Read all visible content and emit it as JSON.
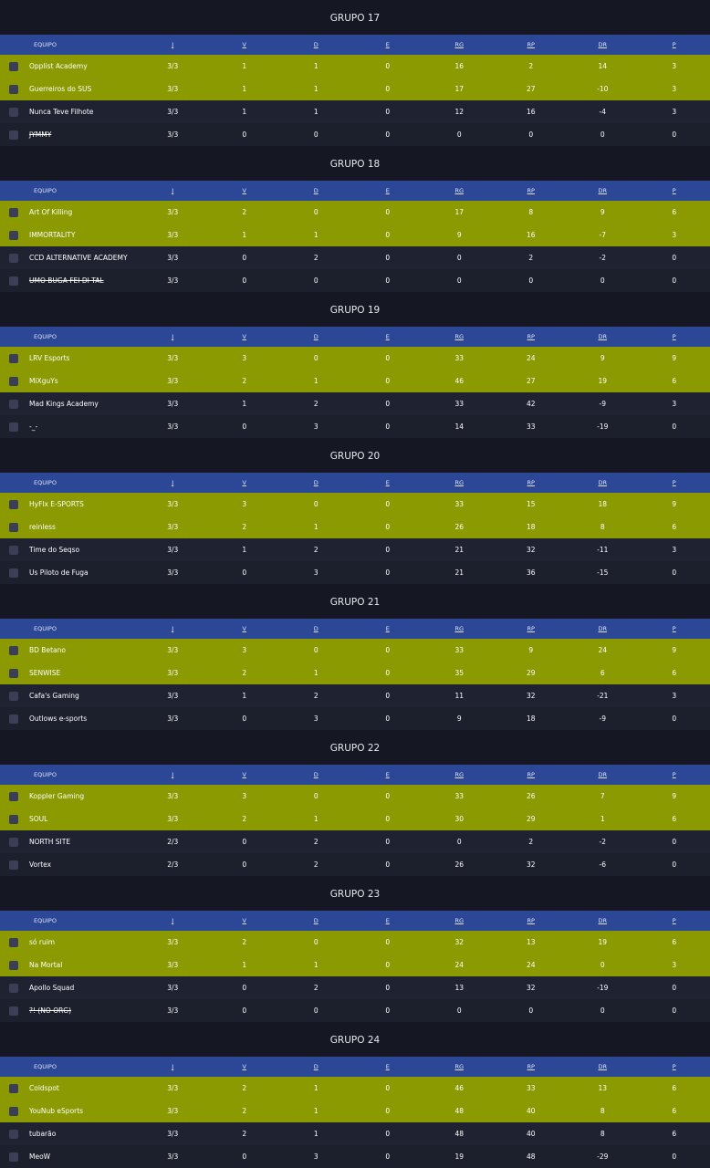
{
  "header": {
    "team": "EQUIPO",
    "cols": [
      "J",
      "V",
      "D",
      "E",
      "RG",
      "RP",
      "DR",
      "P"
    ]
  },
  "groups": [
    {
      "title": "GRUPO 17",
      "rows": [
        {
          "team": "Opplist Academy",
          "stats": [
            "3/3",
            1,
            1,
            0,
            16,
            2,
            14,
            3
          ]
        },
        {
          "team": "Guerreiros do SUS",
          "stats": [
            "3/3",
            1,
            1,
            0,
            17,
            27,
            -10,
            3
          ]
        },
        {
          "team": "Nunca Teve Filhote",
          "stats": [
            "3/3",
            1,
            1,
            0,
            12,
            16,
            -4,
            3
          ]
        },
        {
          "team": "JYMMY",
          "struck": true,
          "stats": [
            "3/3",
            0,
            0,
            0,
            0,
            0,
            0,
            0
          ]
        }
      ]
    },
    {
      "title": "GRUPO 18",
      "rows": [
        {
          "team": "Art Of Killing",
          "stats": [
            "3/3",
            2,
            0,
            0,
            17,
            8,
            9,
            6
          ]
        },
        {
          "team": "IMMORTALITY",
          "stats": [
            "3/3",
            1,
            1,
            0,
            9,
            16,
            -7,
            3
          ]
        },
        {
          "team": "CCD ALTERNATIVE ACADEMY",
          "stats": [
            "3/3",
            0,
            2,
            0,
            0,
            2,
            -2,
            0
          ]
        },
        {
          "team": "UMO BUGA FEI DI TAL",
          "struck": true,
          "stats": [
            "3/3",
            0,
            0,
            0,
            0,
            0,
            0,
            0
          ]
        }
      ]
    },
    {
      "title": "GRUPO 19",
      "rows": [
        {
          "team": "LRV Esports",
          "stats": [
            "3/3",
            3,
            0,
            0,
            33,
            24,
            9,
            9
          ]
        },
        {
          "team": "MiXguYs",
          "stats": [
            "3/3",
            2,
            1,
            0,
            46,
            27,
            19,
            6
          ]
        },
        {
          "team": "Mad Kings Academy",
          "stats": [
            "3/3",
            1,
            2,
            0,
            33,
            42,
            -9,
            3
          ]
        },
        {
          "team": "-_-",
          "stats": [
            "3/3",
            0,
            3,
            0,
            14,
            33,
            -19,
            0
          ]
        }
      ]
    },
    {
      "title": "GRUPO 20",
      "rows": [
        {
          "team": "HyFlx E-SPORTS",
          "stats": [
            "3/3",
            3,
            0,
            0,
            33,
            15,
            18,
            9
          ]
        },
        {
          "team": "reinless",
          "stats": [
            "3/3",
            2,
            1,
            0,
            26,
            18,
            8,
            6
          ]
        },
        {
          "team": "Time do Seqso",
          "stats": [
            "3/3",
            1,
            2,
            0,
            21,
            32,
            -11,
            3
          ]
        },
        {
          "team": "Us Piloto de Fuga",
          "stats": [
            "3/3",
            0,
            3,
            0,
            21,
            36,
            -15,
            0
          ]
        }
      ]
    },
    {
      "title": "GRUPO 21",
      "rows": [
        {
          "team": "BD Betano",
          "stats": [
            "3/3",
            3,
            0,
            0,
            33,
            9,
            24,
            9
          ]
        },
        {
          "team": "SENWISE",
          "stats": [
            "3/3",
            2,
            1,
            0,
            35,
            29,
            6,
            6
          ]
        },
        {
          "team": "Cafa's Gaming",
          "stats": [
            "3/3",
            1,
            2,
            0,
            11,
            32,
            -21,
            3
          ]
        },
        {
          "team": "Outlows e-sports",
          "stats": [
            "3/3",
            0,
            3,
            0,
            9,
            18,
            -9,
            0
          ]
        }
      ]
    },
    {
      "title": "GRUPO 22",
      "rows": [
        {
          "team": "Koppler Gaming",
          "stats": [
            "3/3",
            3,
            0,
            0,
            33,
            26,
            7,
            9
          ]
        },
        {
          "team": "SOUL",
          "stats": [
            "3/3",
            2,
            1,
            0,
            30,
            29,
            1,
            6
          ]
        },
        {
          "team": "NORTH SITE",
          "stats": [
            "2/3",
            0,
            2,
            0,
            0,
            2,
            -2,
            0
          ]
        },
        {
          "team": "Vortex",
          "stats": [
            "2/3",
            0,
            2,
            0,
            26,
            32,
            -6,
            0
          ]
        }
      ]
    },
    {
      "title": "GRUPO 23",
      "rows": [
        {
          "team": "só ruim",
          "stats": [
            "3/3",
            2,
            0,
            0,
            32,
            13,
            19,
            6
          ]
        },
        {
          "team": "Na Mortal",
          "stats": [
            "3/3",
            1,
            1,
            0,
            24,
            24,
            0,
            3
          ]
        },
        {
          "team": "Apollo Squad",
          "stats": [
            "3/3",
            0,
            2,
            0,
            13,
            32,
            -19,
            0
          ]
        },
        {
          "team": "?! (NO ORG)",
          "struck": true,
          "stats": [
            "3/3",
            0,
            0,
            0,
            0,
            0,
            0,
            0
          ]
        }
      ]
    },
    {
      "title": "GRUPO 24",
      "rows": [
        {
          "team": "Coldspot",
          "stats": [
            "3/3",
            2,
            1,
            0,
            46,
            33,
            13,
            6
          ]
        },
        {
          "team": "YouNub eSports",
          "stats": [
            "3/3",
            2,
            1,
            0,
            48,
            40,
            8,
            6
          ]
        },
        {
          "team": "tubarão",
          "stats": [
            "3/3",
            2,
            1,
            0,
            48,
            40,
            8,
            6
          ]
        },
        {
          "team": "MeoW",
          "stats": [
            "3/3",
            0,
            3,
            0,
            19,
            48,
            -29,
            0
          ]
        }
      ]
    }
  ]
}
